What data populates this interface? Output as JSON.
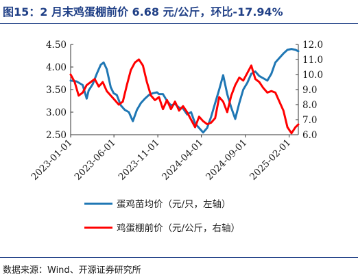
{
  "header": {
    "title": "图15：2 月末鸡蛋棚前价 6.68 元/公斤，环比-17.94%"
  },
  "footer": {
    "source": "数据来源：Wind、开源证券研究所"
  },
  "chart_data": {
    "type": "line",
    "x_ticks": [
      "2023-01-01",
      "2023-06-01",
      "2023-11-01",
      "2024-04-01",
      "2024-09-01",
      "2025-02-01"
    ],
    "x_range": [
      "2023-01-01",
      "2025-03-05"
    ],
    "y_left": {
      "lim": [
        2.5,
        4.5
      ],
      "ticks": [
        "2.50",
        "3.00",
        "3.50",
        "4.00",
        "4.50"
      ]
    },
    "y_right": {
      "lim": [
        6.0,
        12.0
      ],
      "ticks": [
        "6.0",
        "7.0",
        "8.0",
        "9.0",
        "10.0",
        "11.0",
        "12.0"
      ]
    },
    "grid": false,
    "legend_position": "bottom",
    "series": [
      {
        "name": "蛋鸡苗均价（元/只，左轴）",
        "axis": "left",
        "color": "#1f77b4",
        "points": [
          [
            "2023-01-01",
            3.7
          ],
          [
            "2023-01-22",
            3.68
          ],
          [
            "2023-02-12",
            3.6
          ],
          [
            "2023-02-26",
            3.3
          ],
          [
            "2023-03-05",
            3.48
          ],
          [
            "2023-03-19",
            3.62
          ],
          [
            "2023-04-02",
            3.85
          ],
          [
            "2023-04-16",
            4.05
          ],
          [
            "2023-04-26",
            4.1
          ],
          [
            "2023-05-07",
            3.95
          ],
          [
            "2023-05-21",
            3.55
          ],
          [
            "2023-05-31",
            3.42
          ],
          [
            "2023-06-11",
            3.38
          ],
          [
            "2023-06-25",
            3.15
          ],
          [
            "2023-07-09",
            3.05
          ],
          [
            "2023-07-23",
            3.0
          ],
          [
            "2023-08-06",
            2.8
          ],
          [
            "2023-08-20",
            3.05
          ],
          [
            "2023-09-03",
            3.2
          ],
          [
            "2023-09-17",
            3.3
          ],
          [
            "2023-10-01",
            3.38
          ],
          [
            "2023-10-15",
            3.42
          ],
          [
            "2023-10-29",
            3.44
          ],
          [
            "2023-11-05",
            3.4
          ],
          [
            "2023-11-19",
            3.4
          ],
          [
            "2023-12-03",
            3.25
          ],
          [
            "2023-12-17",
            3.15
          ],
          [
            "2023-12-31",
            3.18
          ],
          [
            "2024-01-14",
            3.1
          ],
          [
            "2024-01-28",
            3.08
          ],
          [
            "2024-02-11",
            2.95
          ],
          [
            "2024-02-25",
            3.0
          ],
          [
            "2024-03-10",
            2.75
          ],
          [
            "2024-03-24",
            2.65
          ],
          [
            "2024-04-07",
            2.55
          ],
          [
            "2024-04-21",
            2.65
          ],
          [
            "2024-05-05",
            2.9
          ],
          [
            "2024-05-19",
            3.2
          ],
          [
            "2024-06-02",
            3.5
          ],
          [
            "2024-06-16",
            3.82
          ],
          [
            "2024-06-30",
            3.4
          ],
          [
            "2024-07-14",
            3.1
          ],
          [
            "2024-07-28",
            2.85
          ],
          [
            "2024-08-11",
            3.2
          ],
          [
            "2024-08-25",
            3.5
          ],
          [
            "2024-09-08",
            3.65
          ],
          [
            "2024-09-22",
            3.85
          ],
          [
            "2024-10-06",
            3.9
          ],
          [
            "2024-10-20",
            3.8
          ],
          [
            "2024-11-03",
            3.75
          ],
          [
            "2024-11-17",
            3.7
          ],
          [
            "2024-12-01",
            3.85
          ],
          [
            "2024-12-15",
            4.1
          ],
          [
            "2024-12-29",
            4.2
          ],
          [
            "2025-01-12",
            4.3
          ],
          [
            "2025-01-26",
            4.38
          ],
          [
            "2025-02-09",
            4.4
          ],
          [
            "2025-02-23",
            4.38
          ],
          [
            "2025-03-05",
            4.35
          ]
        ]
      },
      {
        "name": "鸡蛋棚前价（元/公斤，右轴）",
        "axis": "right",
        "color": "#ff0000",
        "points": [
          [
            "2023-01-01",
            10.0
          ],
          [
            "2023-01-15",
            9.5
          ],
          [
            "2023-01-29",
            8.6
          ],
          [
            "2023-02-12",
            8.8
          ],
          [
            "2023-02-26",
            9.3
          ],
          [
            "2023-03-12",
            9.5
          ],
          [
            "2023-03-26",
            9.7
          ],
          [
            "2023-04-09",
            9.2
          ],
          [
            "2023-04-23",
            9.5
          ],
          [
            "2023-05-07",
            8.9
          ],
          [
            "2023-05-21",
            8.6
          ],
          [
            "2023-06-04",
            8.3
          ],
          [
            "2023-06-18",
            8.0
          ],
          [
            "2023-07-02",
            8.2
          ],
          [
            "2023-07-16",
            9.3
          ],
          [
            "2023-07-30",
            10.3
          ],
          [
            "2023-08-13",
            10.8
          ],
          [
            "2023-08-27",
            11.0
          ],
          [
            "2023-09-10",
            10.6
          ],
          [
            "2023-09-24",
            9.5
          ],
          [
            "2023-10-08",
            8.6
          ],
          [
            "2023-10-22",
            8.3
          ],
          [
            "2023-11-05",
            8.5
          ],
          [
            "2023-11-19",
            7.7
          ],
          [
            "2023-12-03",
            8.3
          ],
          [
            "2023-12-17",
            7.7
          ],
          [
            "2023-12-31",
            8.2
          ],
          [
            "2024-01-14",
            7.6
          ],
          [
            "2024-01-28",
            7.9
          ],
          [
            "2024-02-11",
            7.5
          ],
          [
            "2024-02-25",
            7.0
          ],
          [
            "2024-03-10",
            6.5
          ],
          [
            "2024-03-24",
            7.2
          ],
          [
            "2024-04-07",
            6.9
          ],
          [
            "2024-04-21",
            6.7
          ],
          [
            "2024-05-05",
            6.8
          ],
          [
            "2024-05-19",
            7.1
          ],
          [
            "2024-06-02",
            8.5
          ],
          [
            "2024-06-16",
            8.2
          ],
          [
            "2024-06-30",
            7.5
          ],
          [
            "2024-07-14",
            8.6
          ],
          [
            "2024-07-28",
            9.3
          ],
          [
            "2024-08-11",
            9.8
          ],
          [
            "2024-08-25",
            9.6
          ],
          [
            "2024-09-08",
            10.1
          ],
          [
            "2024-09-22",
            10.6
          ],
          [
            "2024-10-06",
            9.7
          ],
          [
            "2024-10-20",
            9.5
          ],
          [
            "2024-11-03",
            9.1
          ],
          [
            "2024-11-17",
            8.8
          ],
          [
            "2024-12-01",
            8.9
          ],
          [
            "2024-12-15",
            8.8
          ],
          [
            "2024-12-29",
            8.2
          ],
          [
            "2025-01-12",
            7.6
          ],
          [
            "2025-01-26",
            6.5
          ],
          [
            "2025-02-09",
            6.1
          ],
          [
            "2025-02-23",
            6.5
          ],
          [
            "2025-03-05",
            6.68
          ]
        ]
      }
    ]
  }
}
